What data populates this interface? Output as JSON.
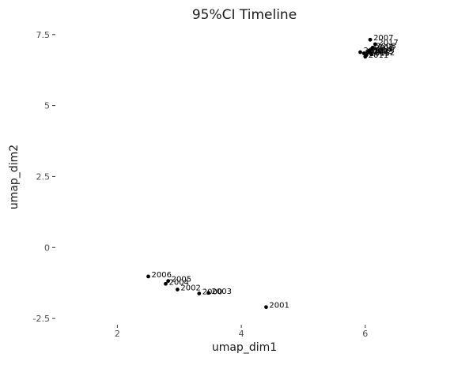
{
  "chart_data": {
    "type": "scatter",
    "title": "95%CI Timeline",
    "xlabel": "umap_dim1",
    "ylabel": "umap_dim2",
    "xlim": [
      1.0,
      7.1
    ],
    "ylim": [
      -2.72,
      7.8
    ],
    "x_ticks": [
      {
        "value": 2,
        "label": "2"
      },
      {
        "value": 4,
        "label": "4"
      },
      {
        "value": 6,
        "label": "6"
      }
    ],
    "y_ticks": [
      {
        "value": 7.5,
        "label": "7.5"
      },
      {
        "value": 5,
        "label": "5"
      },
      {
        "value": 2.5,
        "label": "2.5"
      },
      {
        "value": 0,
        "label": "0"
      },
      {
        "value": -2.5,
        "label": "-2.5"
      }
    ],
    "grid": false,
    "points": [
      {
        "x": 4.4,
        "y": -2.1,
        "label": "2001"
      },
      {
        "x": 2.97,
        "y": -1.48,
        "label": "2002"
      },
      {
        "x": 3.47,
        "y": -1.6,
        "label": "2003"
      },
      {
        "x": 2.78,
        "y": -1.28,
        "label": "2004"
      },
      {
        "x": 2.82,
        "y": -1.18,
        "label": "2005"
      },
      {
        "x": 2.5,
        "y": -1.02,
        "label": "2006"
      },
      {
        "x": 3.32,
        "y": -1.62,
        "label": "2000"
      },
      {
        "x": 6.08,
        "y": 7.32,
        "label": "2007"
      },
      {
        "x": 6.16,
        "y": 7.16,
        "label": "2017"
      },
      {
        "x": 6.12,
        "y": 7.04,
        "label": "2008"
      },
      {
        "x": 6.1,
        "y": 6.98,
        "label": "2016"
      },
      {
        "x": 6.06,
        "y": 6.92,
        "label": "2014"
      },
      {
        "x": 6.04,
        "y": 6.88,
        "label": "2019"
      },
      {
        "x": 5.98,
        "y": 6.84,
        "label": "2009"
      },
      {
        "x": 6.08,
        "y": 6.86,
        "label": "2013"
      },
      {
        "x": 6.02,
        "y": 6.78,
        "label": "2015"
      },
      {
        "x": 5.92,
        "y": 6.88,
        "label": "2010"
      },
      {
        "x": 6.0,
        "y": 6.72,
        "label": "2011"
      },
      {
        "x": 6.1,
        "y": 6.8,
        "label": "2012"
      }
    ]
  }
}
